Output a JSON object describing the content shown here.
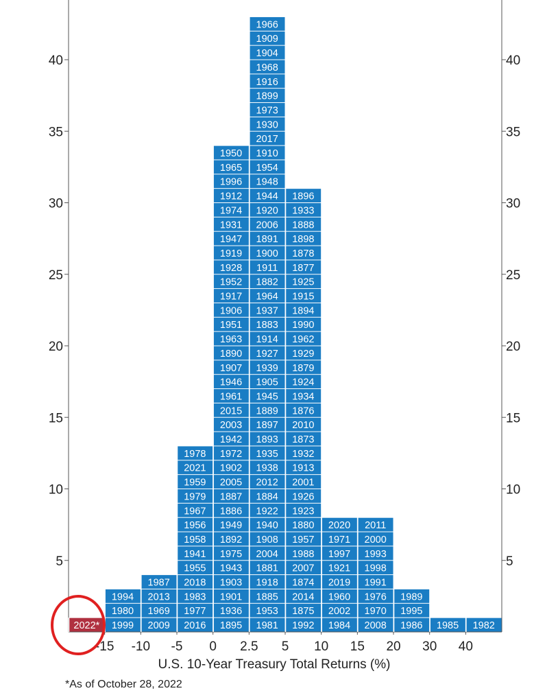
{
  "chart_data": {
    "type": "bar",
    "xlabel": "U.S. 10-Year Treasury Total Returns (%)",
    "ylabel": "",
    "footnote": "*As of October 28, 2022",
    "ylim": [
      0,
      45
    ],
    "yticks": [
      5,
      10,
      15,
      20,
      25,
      30,
      35,
      40
    ],
    "x_tick_labels": [
      "-15",
      "-10",
      "-5",
      "0",
      "2.5",
      "5",
      "10",
      "15",
      "20",
      "30",
      "40"
    ],
    "bar_color": "#1a7dc4",
    "highlight_color": "#b03040",
    "highlight_circle_color": "#e02020",
    "bins": [
      {
        "years": [
          "2022*"
        ],
        "highlight": true
      },
      {
        "years": [
          "1999",
          "1980",
          "1994"
        ]
      },
      {
        "years": [
          "2009",
          "1969",
          "2013",
          "1987"
        ]
      },
      {
        "years": [
          "2016",
          "1977",
          "1983",
          "2018",
          "1955",
          "1941",
          "1958",
          "1956",
          "1967",
          "1979",
          "1959",
          "2021",
          "1978"
        ]
      },
      {
        "years": [
          "1895",
          "1936",
          "1901",
          "1903",
          "1943",
          "1975",
          "1892",
          "1949",
          "1886",
          "1887",
          "2005",
          "1902",
          "1972",
          "1942",
          "2003",
          "2015",
          "1961",
          "1946",
          "1907",
          "1890",
          "1963",
          "1951",
          "1906",
          "1917",
          "1952",
          "1928",
          "1919",
          "1947",
          "1931",
          "1974",
          "1912",
          "1996",
          "1965",
          "1950"
        ]
      },
      {
        "years": [
          "1981",
          "1953",
          "1885",
          "1918",
          "1881",
          "2004",
          "1908",
          "1940",
          "1922",
          "1884",
          "2012",
          "1938",
          "1935",
          "1893",
          "1897",
          "1889",
          "1945",
          "1905",
          "1939",
          "1927",
          "1914",
          "1883",
          "1937",
          "1964",
          "1882",
          "1911",
          "1900",
          "1891",
          "2006",
          "1920",
          "1944",
          "1948",
          "1954",
          "1910",
          "2017",
          "1930",
          "1973",
          "1899",
          "1916",
          "1968",
          "1904",
          "1909",
          "1966"
        ]
      },
      {
        "years": [
          "1992",
          "1875",
          "2014",
          "1874",
          "2007",
          "1988",
          "1957",
          "1880",
          "1923",
          "1926",
          "2001",
          "1913",
          "1932",
          "1873",
          "2010",
          "1876",
          "1934",
          "1924",
          "1879",
          "1929",
          "1962",
          "1990",
          "1894",
          "1915",
          "1925",
          "1877",
          "1878",
          "1898",
          "1888",
          "1933",
          "1896"
        ]
      },
      {
        "years": [
          "1984",
          "2002",
          "1960",
          "2019",
          "1921",
          "1997",
          "1971",
          "2020"
        ]
      },
      {
        "years": [
          "2008",
          "1970",
          "1976",
          "1991",
          "1998",
          "1993",
          "2000",
          "2011"
        ]
      },
      {
        "years": [
          "1986",
          "1995",
          "1989"
        ]
      },
      {
        "years": [
          "1985"
        ]
      },
      {
        "years": [
          "1982"
        ]
      }
    ]
  }
}
